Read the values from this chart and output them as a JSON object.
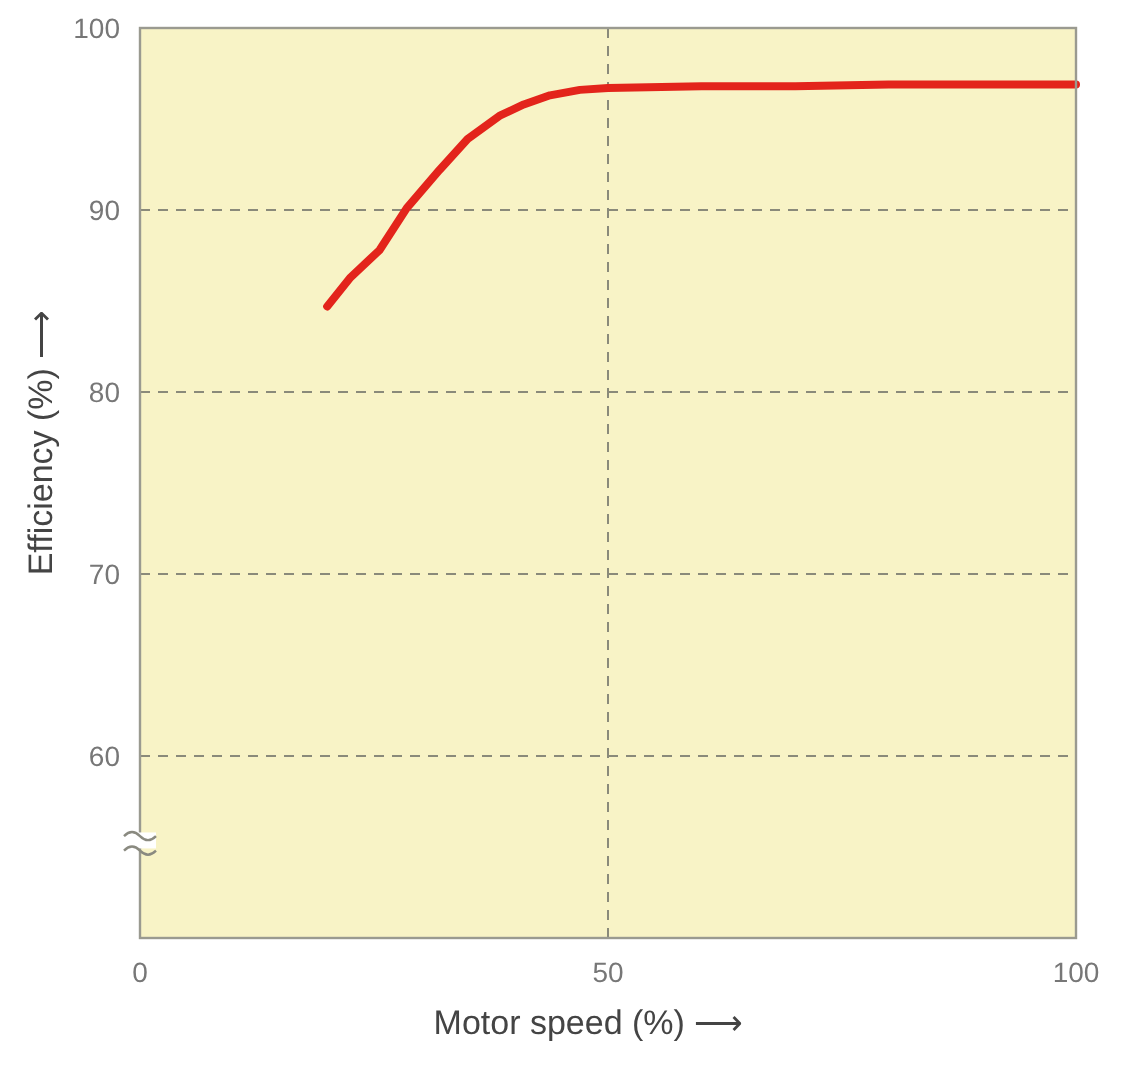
{
  "chart_data": {
    "type": "line",
    "xlabel": "Motor speed (%) ⟶",
    "ylabel": "Efficiency (%) ⟶",
    "xlim": [
      0,
      100
    ],
    "ylim": [
      50,
      100
    ],
    "xticks": [
      0,
      50,
      100
    ],
    "yticks": [
      60,
      70,
      80,
      90,
      100
    ],
    "grid": true,
    "line_style": "solid",
    "marker": "none",
    "series": [
      {
        "color": "#e3241b",
        "x": [
          20,
          22.5,
          25.6,
          28.5,
          32,
          35,
          38.5,
          41,
          43.8,
          47,
          50,
          60,
          70,
          80,
          90,
          100
        ],
        "values": [
          84.7,
          86.3,
          87.8,
          90.1,
          92.2,
          93.9,
          95.2,
          95.8,
          96.3,
          96.6,
          96.7,
          96.8,
          96.8,
          96.9,
          96.9,
          96.9
        ]
      }
    ]
  }
}
